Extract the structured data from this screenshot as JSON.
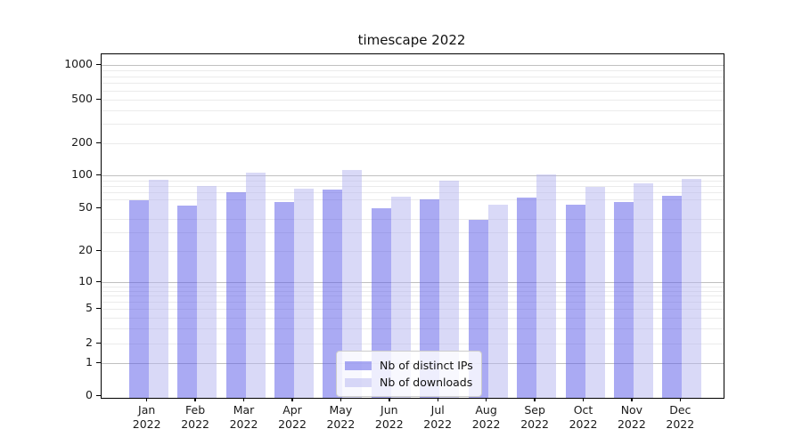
{
  "title": "timescape 2022",
  "chart_data": {
    "type": "bar",
    "title": "timescape 2022",
    "categories": [
      "Jan",
      "Feb",
      "Mar",
      "Apr",
      "May",
      "Jun",
      "Jul",
      "Aug",
      "Sep",
      "Oct",
      "Nov",
      "Dec"
    ],
    "category_year": "2022",
    "series": [
      {
        "name": "Nb of distinct IPs",
        "color": "#5555E8",
        "values": [
          59,
          53,
          70,
          57,
          74,
          50,
          60,
          39,
          63,
          54,
          57,
          65
        ]
      },
      {
        "name": "Nb of downloads",
        "color": "#B4B4F0",
        "values": [
          92,
          80,
          107,
          76,
          112,
          64,
          90,
          54,
          103,
          78,
          85,
          93
        ]
      }
    ],
    "yscale": "symlog",
    "yticks": [
      0,
      1,
      2,
      5,
      10,
      20,
      50,
      100,
      200,
      500,
      1000
    ],
    "ylim": [
      0,
      1122
    ],
    "grid": "on",
    "legend_position": "lower center"
  },
  "colors": {
    "bar_ips_rendered": "#AAAAF2",
    "bar_downloads_rendered": "#D9D9F9",
    "grid_major": "#C0C0C0",
    "grid_minor": "#EBEBEB",
    "spine": "#000000",
    "text": "#1A1A1A",
    "legend_border": "#CCCCCC",
    "legend_bg": "#FFFFFF"
  }
}
